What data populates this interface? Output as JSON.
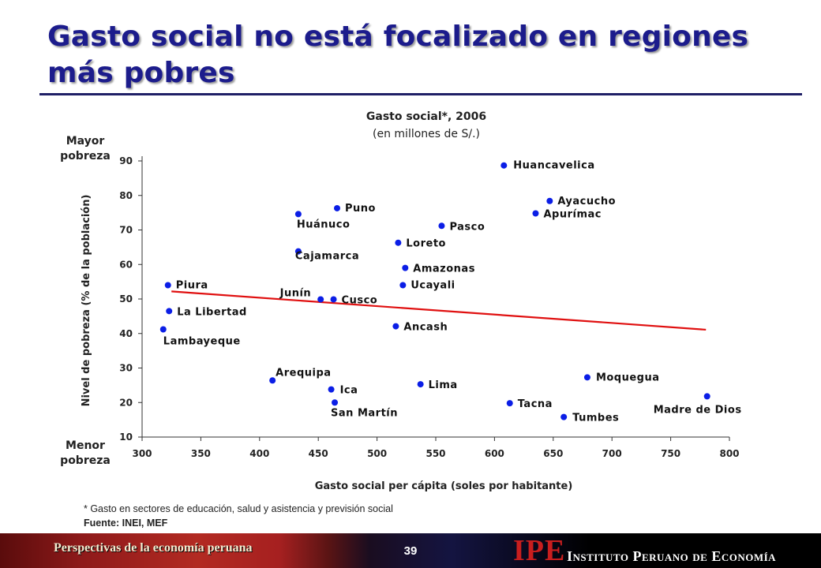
{
  "slide": {
    "title": "Gasto social no está focalizado en regiones más pobres",
    "footnote": "* Gasto en sectores de educación, salud y asistencia y previsión social",
    "source": "Fuente: INEI, MEF"
  },
  "footer": {
    "text": "Perspectivas de la economía peruana",
    "page_number": "39",
    "logo": "IPE",
    "institute": "Instituto Peruano de Economía"
  },
  "chart_data": {
    "type": "scatter",
    "title": "Gasto social*, 2006",
    "subtitle": "(en millones de S/.)",
    "xlabel": "Gasto social per cápita (soles por habitante)",
    "ylabel": "Nivel de pobreza (% de la población)",
    "top_label": "Mayor pobreza",
    "bottom_label": "Menor pobreza",
    "xlim": [
      300,
      800
    ],
    "ylim": [
      10,
      90
    ],
    "x_ticks": [
      300,
      350,
      400,
      450,
      500,
      550,
      600,
      650,
      700,
      750,
      800
    ],
    "y_ticks": [
      10,
      20,
      30,
      40,
      50,
      60,
      70,
      80,
      90
    ],
    "grid": false,
    "point_color": "#0b1ee6",
    "trend_color": "#e01010",
    "points": [
      {
        "label": "Huancavelica",
        "x": 608,
        "y": 88.7
      },
      {
        "label": "Ayacucho",
        "x": 647,
        "y": 78.4
      },
      {
        "label": "Apurímac",
        "x": 635,
        "y": 74.8
      },
      {
        "label": "Puno",
        "x": 466,
        "y": 76.3
      },
      {
        "label": "Huánuco",
        "x": 433,
        "y": 74.6
      },
      {
        "label": "Pasco",
        "x": 555,
        "y": 71.2
      },
      {
        "label": "Loreto",
        "x": 518,
        "y": 66.3
      },
      {
        "label": "Cajamarca",
        "x": 433,
        "y": 63.8
      },
      {
        "label": "Amazonas",
        "x": 524,
        "y": 59.0
      },
      {
        "label": "Piura",
        "x": 322,
        "y": 54.0
      },
      {
        "label": "Ucayali",
        "x": 522,
        "y": 54.0
      },
      {
        "label": "Junín",
        "x": 452,
        "y": 49.9
      },
      {
        "label": "Cusco",
        "x": 463,
        "y": 49.9
      },
      {
        "label": "La Libertad",
        "x": 323,
        "y": 46.5
      },
      {
        "label": "Ancash",
        "x": 516,
        "y": 42.1
      },
      {
        "label": "Lambayeque",
        "x": 318,
        "y": 41.2
      },
      {
        "label": "Arequipa",
        "x": 411,
        "y": 26.4
      },
      {
        "label": "Moquegua",
        "x": 679,
        "y": 27.3
      },
      {
        "label": "Lima",
        "x": 537,
        "y": 25.3
      },
      {
        "label": "Ica",
        "x": 461,
        "y": 23.8
      },
      {
        "label": "Madre de Dios",
        "x": 781,
        "y": 21.8
      },
      {
        "label": "San Martín",
        "x": 464,
        "y": 20.0
      },
      {
        "label": "Tacna",
        "x": 613,
        "y": 19.8
      },
      {
        "label": "Tumbes",
        "x": 659,
        "y": 15.8
      }
    ],
    "trendline": {
      "x": [
        325,
        780
      ],
      "y": [
        52.2,
        41.1
      ]
    }
  }
}
